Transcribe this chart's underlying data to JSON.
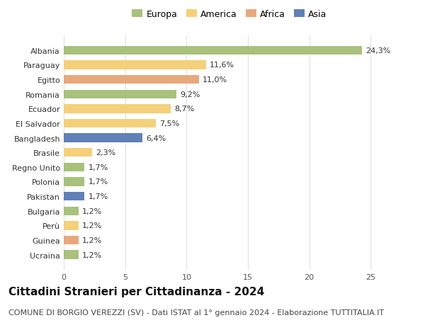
{
  "countries": [
    "Albania",
    "Paraguay",
    "Egitto",
    "Romania",
    "Ecuador",
    "El Salvador",
    "Bangladesh",
    "Brasile",
    "Regno Unito",
    "Polonia",
    "Pakistan",
    "Bulgaria",
    "Perù",
    "Guinea",
    "Ucraina"
  ],
  "values": [
    24.3,
    11.6,
    11.0,
    9.2,
    8.7,
    7.5,
    6.4,
    2.3,
    1.7,
    1.7,
    1.7,
    1.2,
    1.2,
    1.2,
    1.2
  ],
  "labels": [
    "24,3%",
    "11,6%",
    "11,0%",
    "9,2%",
    "8,7%",
    "7,5%",
    "6,4%",
    "2,3%",
    "1,7%",
    "1,7%",
    "1,7%",
    "1,2%",
    "1,2%",
    "1,2%",
    "1,2%"
  ],
  "continents": [
    "Europa",
    "America",
    "Africa",
    "Europa",
    "America",
    "America",
    "Asia",
    "America",
    "Europa",
    "Europa",
    "Asia",
    "Europa",
    "America",
    "Africa",
    "Europa"
  ],
  "continent_colors": {
    "Europa": "#a8c17c",
    "America": "#f5d07a",
    "Africa": "#e8a87c",
    "Asia": "#6080b8"
  },
  "legend_order": [
    "Europa",
    "America",
    "Africa",
    "Asia"
  ],
  "title": "Cittadini Stranieri per Cittadinanza - 2024",
  "subtitle": "COMUNE DI BORGIO VEREZZI (SV) - Dati ISTAT al 1° gennaio 2024 - Elaborazione TUTTITALIA.IT",
  "xlim": [
    0,
    27
  ],
  "xticks": [
    0,
    5,
    10,
    15,
    20,
    25
  ],
  "background_color": "#ffffff",
  "grid_color": "#e0e0e0",
  "title_fontsize": 11,
  "subtitle_fontsize": 8,
  "label_fontsize": 8,
  "tick_fontsize": 8,
  "bar_height": 0.6
}
